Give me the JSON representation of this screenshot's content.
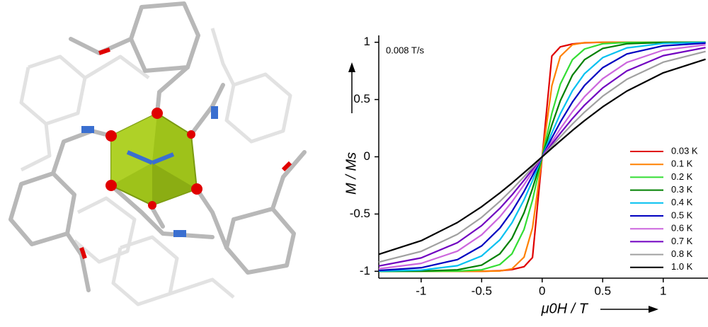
{
  "chart_data": {
    "type": "line",
    "annotation": "0.008 T/s",
    "x_label": "μ0H / T",
    "y_label": "M / Ms",
    "xlim": [
      -1.35,
      1.37
    ],
    "ylim": [
      -1.06,
      1.06
    ],
    "xticks": [
      -1,
      -0.5,
      0,
      0.5,
      1
    ],
    "yticks": [
      -1,
      -0.5,
      0,
      0.5,
      1
    ],
    "legend": "lower right",
    "x": [
      -1.35,
      -1,
      -0.7,
      -0.5,
      -0.35,
      -0.25,
      -0.15,
      -0.08,
      0,
      0.08,
      0.15,
      0.25,
      0.35,
      0.5,
      0.7,
      1,
      1.35
    ],
    "series": [
      {
        "name": "0.03 K",
        "color": "#e00000",
        "values": [
          -1,
          -1,
          -1,
          -1,
          -0.995,
          -0.985,
          -0.96,
          -0.88,
          0,
          0.88,
          0.96,
          0.985,
          0.995,
          1,
          1,
          1,
          1
        ]
      },
      {
        "name": "0.1 K",
        "color": "#ff8000",
        "values": [
          -1,
          -1,
          -1,
          -1,
          -0.997,
          -0.979,
          -0.877,
          -0.621,
          0,
          0.621,
          0.877,
          0.979,
          0.997,
          1,
          1,
          1,
          1
        ]
      },
      {
        "name": "0.2 K",
        "color": "#33dd33",
        "values": [
          -1,
          -1,
          -0.998,
          -0.987,
          -0.941,
          -0.848,
          -0.635,
          -0.38,
          0,
          0.38,
          0.635,
          0.848,
          0.941,
          0.987,
          0.998,
          1,
          1
        ]
      },
      {
        "name": "0.3 K",
        "color": "#008000",
        "values": [
          -1,
          -0.998,
          -0.987,
          -0.946,
          -0.848,
          -0.713,
          -0.49,
          -0.278,
          0,
          0.278,
          0.49,
          0.713,
          0.848,
          0.946,
          0.987,
          0.998,
          1
        ]
      },
      {
        "name": "0.4 K",
        "color": "#00c0f0",
        "values": [
          -0.998,
          -0.99,
          -0.951,
          -0.866,
          -0.726,
          -0.577,
          -0.376,
          -0.208,
          0,
          0.208,
          0.376,
          0.577,
          0.726,
          0.866,
          0.951,
          0.99,
          0.998
        ]
      },
      {
        "name": "0.5 K",
        "color": "#0000c0",
        "values": [
          -0.993,
          -0.969,
          -0.898,
          -0.778,
          -0.623,
          -0.478,
          -0.303,
          -0.165,
          0,
          0.165,
          0.303,
          0.478,
          0.623,
          0.778,
          0.898,
          0.969,
          0.993
        ]
      },
      {
        "name": "0.6 K",
        "color": "#cc66dd",
        "values": [
          -0.978,
          -0.931,
          -0.824,
          -0.682,
          -0.525,
          -0.394,
          -0.245,
          -0.132,
          0,
          0.132,
          0.245,
          0.394,
          0.525,
          0.682,
          0.824,
          0.931,
          0.978
        ]
      },
      {
        "name": "0.7 K",
        "color": "#7000c0",
        "values": [
          -0.954,
          -0.883,
          -0.75,
          -0.601,
          -0.451,
          -0.334,
          -0.205,
          -0.111,
          0,
          0.111,
          0.205,
          0.334,
          0.451,
          0.601,
          0.75,
          0.883,
          0.954
        ]
      },
      {
        "name": "0.8 K",
        "color": "#a0a0a0",
        "values": [
          -0.92,
          -0.826,
          -0.677,
          -0.529,
          -0.39,
          -0.286,
          -0.174,
          -0.094,
          0,
          0.094,
          0.174,
          0.286,
          0.39,
          0.529,
          0.677,
          0.826,
          0.92
        ]
      },
      {
        "name": "1.0 K",
        "color": "#000000",
        "values": [
          -0.852,
          -0.733,
          -0.574,
          -0.436,
          -0.316,
          -0.23,
          -0.139,
          -0.075,
          0,
          0.075,
          0.139,
          0.23,
          0.316,
          0.436,
          0.574,
          0.733,
          0.852
        ]
      }
    ]
  }
}
